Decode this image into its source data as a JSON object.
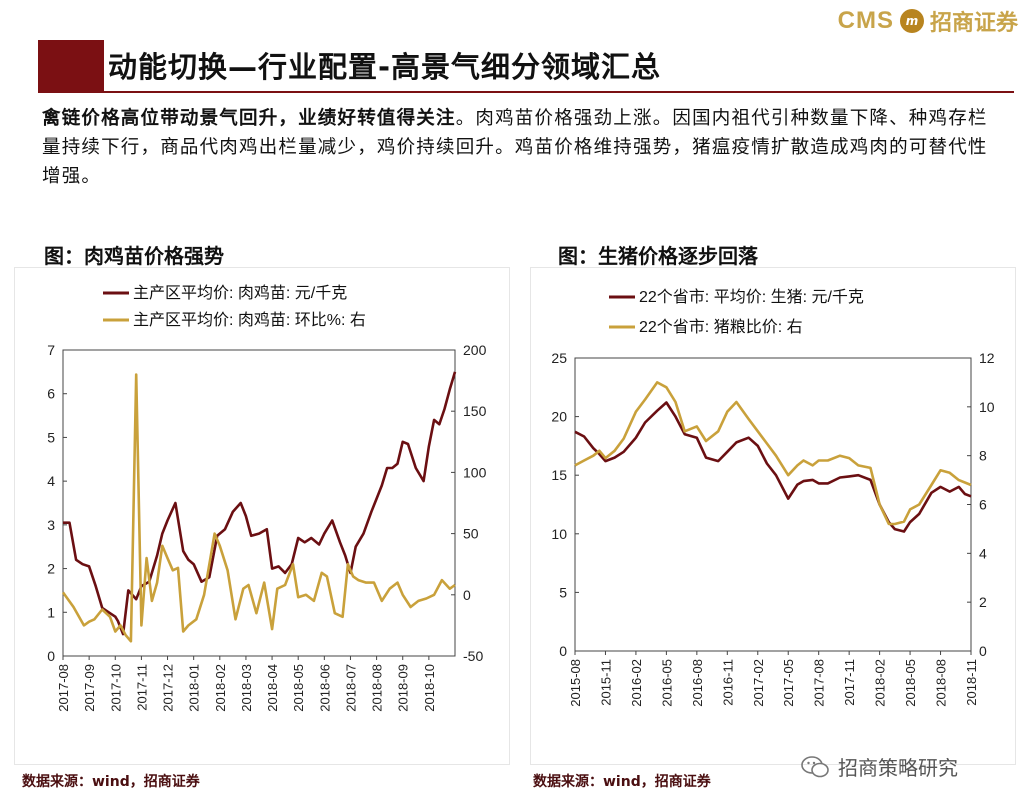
{
  "header": {
    "logo_text": "CMS",
    "logo_mark": "m",
    "logo_cn": "招商证券",
    "brand_color": "#7b1013",
    "page_title": "动能切换—行业配置-高景气细分领域汇总"
  },
  "summary": {
    "lead": "禽链价格高位带动景气回升，业绩好转值得关注",
    "body": "。肉鸡苗价格强劲上涨。因国内祖代引种数量下降、种鸡存栏量持续下行，商品代肉鸡出栏量减少，鸡价持续回升。鸡苗价格维持强势，猪瘟疫情扩散造成鸡肉的可替代性增强。"
  },
  "figures": {
    "left_title": "图：肉鸡苗价格强势",
    "right_title": "图：生猪价格逐步回落",
    "left_source": "数据来源：wind，招商证券",
    "right_source": "数据来源：wind，招商证券"
  },
  "watermark": {
    "text": "招商策略研究",
    "icon": "wechat-icon"
  },
  "colors": {
    "series_dark": "#6b0f12",
    "series_gold": "#c9a13b"
  },
  "chart_data": [
    {
      "type": "line",
      "title": "图：肉鸡苗价格强势",
      "x_range": [
        0,
        15
      ],
      "x_ticks": [
        "2017-08",
        "2017-09",
        "2017-10",
        "2017-11",
        "2017-12",
        "2018-01",
        "2018-02",
        "2018-03",
        "2018-04",
        "2018-05",
        "2018-06",
        "2018-07",
        "2018-08",
        "2018-09",
        "2018-10"
      ],
      "ylim": [
        0,
        7
      ],
      "y_ticks": [
        "0",
        "1",
        "2",
        "3",
        "4",
        "5",
        "6",
        "7"
      ],
      "y2lim": [
        -50,
        200
      ],
      "y2_ticks": [
        "-50",
        "0",
        "50",
        "100",
        "150",
        "200"
      ],
      "series": [
        {
          "name": "主产区平均价: 肉鸡苗: 元/千克",
          "axis": "left",
          "color": "#6b0f12",
          "x": [
            0,
            0.25,
            0.5,
            0.75,
            1.0,
            1.25,
            1.5,
            1.75,
            2.0,
            2.1,
            2.3,
            2.5,
            2.8,
            3.0,
            3.3,
            3.6,
            3.8,
            4.0,
            4.3,
            4.6,
            4.8,
            5.0,
            5.3,
            5.6,
            5.9,
            6.2,
            6.5,
            6.8,
            7.0,
            7.2,
            7.5,
            7.8,
            8.0,
            8.25,
            8.5,
            8.75,
            9.0,
            9.25,
            9.5,
            9.8,
            10.0,
            10.3,
            10.6,
            10.8,
            11.0,
            11.2,
            11.5,
            11.8,
            12.0,
            12.2,
            12.4,
            12.6,
            12.8,
            13.0,
            13.2,
            13.5,
            13.8,
            14.0,
            14.2,
            14.4,
            14.6,
            14.8,
            15.0
          ],
          "values": [
            3.05,
            3.05,
            2.2,
            2.1,
            2.05,
            1.6,
            1.1,
            1.0,
            0.9,
            0.8,
            0.5,
            1.5,
            1.3,
            1.6,
            1.7,
            2.3,
            2.8,
            3.1,
            3.5,
            2.4,
            2.2,
            2.1,
            1.7,
            1.8,
            2.75,
            2.9,
            3.3,
            3.5,
            3.2,
            2.75,
            2.8,
            2.9,
            2.0,
            2.05,
            1.9,
            2.1,
            2.7,
            2.6,
            2.7,
            2.55,
            2.8,
            3.1,
            2.6,
            2.3,
            1.9,
            2.5,
            2.8,
            3.3,
            3.6,
            3.9,
            4.3,
            4.3,
            4.4,
            4.9,
            4.85,
            4.3,
            4.0,
            4.8,
            5.4,
            5.3,
            5.65,
            6.1,
            6.5
          ]
        },
        {
          "name": "主产区平均价: 肉鸡苗: 环比%: 右",
          "axis": "right",
          "color": "#c9a13b",
          "x": [
            0,
            0.4,
            0.8,
            1.0,
            1.2,
            1.5,
            1.8,
            2.0,
            2.2,
            2.4,
            2.6,
            2.8,
            3.0,
            3.2,
            3.4,
            3.6,
            3.8,
            4.0,
            4.2,
            4.4,
            4.6,
            4.8,
            5.1,
            5.4,
            5.8,
            6.0,
            6.3,
            6.6,
            6.9,
            7.1,
            7.4,
            7.7,
            8.0,
            8.2,
            8.5,
            8.8,
            9.0,
            9.3,
            9.6,
            9.9,
            10.1,
            10.4,
            10.7,
            10.9,
            11.1,
            11.3,
            11.6,
            11.9,
            12.2,
            12.5,
            12.8,
            13.0,
            13.3,
            13.6,
            13.9,
            14.2,
            14.5,
            14.8,
            15.0
          ],
          "values": [
            2,
            -10,
            -25,
            -22,
            -20,
            -12,
            -18,
            -30,
            -25,
            -33,
            -38,
            180,
            -25,
            30,
            -5,
            10,
            40,
            30,
            20,
            22,
            -30,
            -25,
            -20,
            0,
            50,
            40,
            20,
            -20,
            5,
            8,
            -15,
            10,
            -28,
            5,
            8,
            25,
            -2,
            0,
            -5,
            18,
            15,
            -15,
            -18,
            25,
            15,
            12,
            10,
            10,
            -5,
            5,
            10,
            0,
            -10,
            -5,
            -3,
            0,
            12,
            5,
            8
          ]
        }
      ],
      "legend": "top-left"
    },
    {
      "type": "line",
      "title": "图：生猪价格逐步回落",
      "x_range": [
        0,
        13
      ],
      "x_ticks": [
        "2015-08",
        "2015-11",
        "2016-02",
        "2016-05",
        "2016-08",
        "2016-11",
        "2017-02",
        "2017-05",
        "2017-08",
        "2017-11",
        "2018-02",
        "2018-05",
        "2018-08",
        "2018-11"
      ],
      "ylim": [
        0,
        25
      ],
      "y_ticks": [
        "0",
        "5",
        "10",
        "15",
        "20",
        "25"
      ],
      "y2lim": [
        0,
        12
      ],
      "y2_ticks": [
        "0",
        "2",
        "4",
        "6",
        "8",
        "10",
        "12"
      ],
      "series": [
        {
          "name": "22个省市: 平均价: 生猪: 元/千克",
          "axis": "left",
          "color": "#6b0f12",
          "x": [
            0,
            0.3,
            0.6,
            0.8,
            1.0,
            1.3,
            1.6,
            2.0,
            2.3,
            2.7,
            3.0,
            3.3,
            3.6,
            4.0,
            4.3,
            4.7,
            5.0,
            5.3,
            5.7,
            6.0,
            6.3,
            6.6,
            7.0,
            7.3,
            7.5,
            7.8,
            8.0,
            8.3,
            8.7,
            9.0,
            9.3,
            9.7,
            10.0,
            10.3,
            10.5,
            10.8,
            11.0,
            11.3,
            11.7,
            12.0,
            12.3,
            12.6,
            12.8,
            13.0
          ],
          "values": [
            18.7,
            18.3,
            17.3,
            16.8,
            16.2,
            16.5,
            17.0,
            18.2,
            19.5,
            20.5,
            21.2,
            20.0,
            18.5,
            18.2,
            16.5,
            16.2,
            17.0,
            17.8,
            18.2,
            17.5,
            16.0,
            15.0,
            13.0,
            14.2,
            14.5,
            14.6,
            14.3,
            14.3,
            14.8,
            14.9,
            15.0,
            14.6,
            12.5,
            11.0,
            10.4,
            10.2,
            11.0,
            11.7,
            13.5,
            14.0,
            13.6,
            14.0,
            13.4,
            13.2
          ]
        },
        {
          "name": "22个省市: 猪粮比价: 右",
          "axis": "right",
          "color": "#c9a13b",
          "x": [
            0,
            0.3,
            0.6,
            0.8,
            1.0,
            1.3,
            1.6,
            2.0,
            2.3,
            2.7,
            3.0,
            3.3,
            3.6,
            4.0,
            4.3,
            4.7,
            5.0,
            5.3,
            5.7,
            6.0,
            6.3,
            6.6,
            7.0,
            7.3,
            7.5,
            7.8,
            8.0,
            8.3,
            8.7,
            9.0,
            9.3,
            9.7,
            10.0,
            10.3,
            10.5,
            10.8,
            11.0,
            11.3,
            11.7,
            12.0,
            12.3,
            12.6,
            12.8,
            13.0
          ],
          "values": [
            7.6,
            7.8,
            8.0,
            8.2,
            7.9,
            8.2,
            8.7,
            9.8,
            10.3,
            11.0,
            10.8,
            10.2,
            9.0,
            9.2,
            8.6,
            9.0,
            9.8,
            10.2,
            9.5,
            9.0,
            8.5,
            8.0,
            7.2,
            7.6,
            7.8,
            7.6,
            7.8,
            7.8,
            8.0,
            7.9,
            7.6,
            7.5,
            6.0,
            5.2,
            5.2,
            5.3,
            5.8,
            6.0,
            6.8,
            7.4,
            7.3,
            7.0,
            6.9,
            6.8
          ]
        }
      ],
      "legend": "top-left"
    }
  ]
}
